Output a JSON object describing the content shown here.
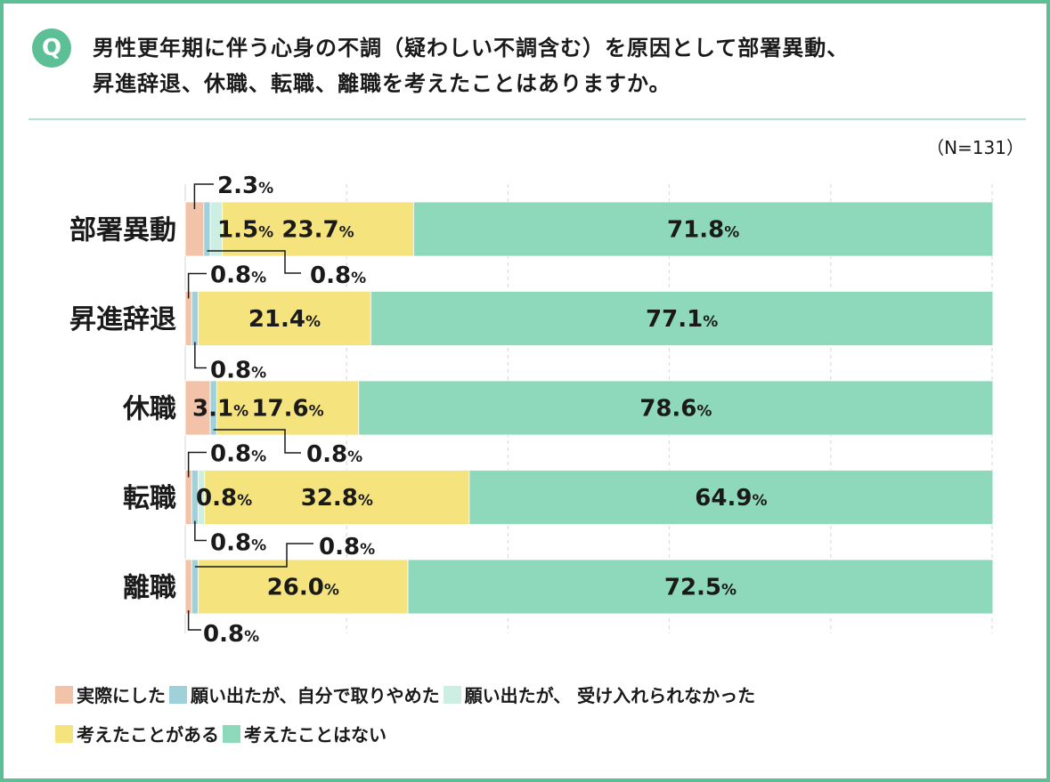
{
  "header": {
    "badge": "Q",
    "question_line1": "男性更年期に伴う心身の不調（疑わしい不調含む）を原因として部署異動、",
    "question_line2": "昇進辞退、休職、転職、離職を考えたことはありますか。"
  },
  "note": "（N=131）",
  "colors": {
    "did": "#f2c3a8",
    "stopped": "#9fd1db",
    "rejected": "#cdeee3",
    "considered": "#f5e47e",
    "never": "#8ed9bc",
    "frame": "#5cbf96"
  },
  "chart_data": {
    "type": "bar",
    "orientation": "horizontal",
    "stacked": true,
    "unit": "%",
    "categories": [
      "部署異動",
      "昇進辞退",
      "休職",
      "転職",
      "離職"
    ],
    "series": [
      {
        "name": "実際にした",
        "values": [
          2.3,
          0.8,
          3.1,
          0.8,
          0.8
        ]
      },
      {
        "name": "願い出たが、自分で取りやめた",
        "values": [
          0.8,
          0.8,
          0.8,
          0.8,
          0.8
        ]
      },
      {
        "name": "願い出たが、 受け入れられなかった",
        "values": [
          1.5,
          0.0,
          0.0,
          0.8,
          0.0
        ]
      },
      {
        "name": "考えたことがある",
        "values": [
          23.7,
          21.4,
          17.6,
          32.8,
          26.0
        ]
      },
      {
        "name": "考えたことはない",
        "values": [
          71.8,
          77.1,
          78.6,
          64.9,
          72.5
        ]
      }
    ],
    "xlim": [
      0,
      100
    ],
    "grid": true,
    "legend_position": "bottom"
  },
  "legend": {
    "row1": [
      "実際にした",
      "願い出たが、自分で取りやめた",
      "願い出たが、 受け入れられなかった"
    ],
    "row2": [
      "考えたことがある",
      "考えたことはない"
    ]
  }
}
